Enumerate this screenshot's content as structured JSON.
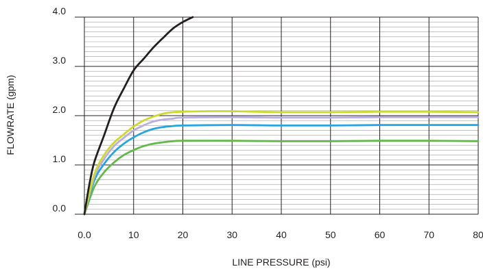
{
  "chart_data": {
    "type": "line",
    "xlabel": "LINE PRESSURE (psi)",
    "ylabel": "FLOWRATE (gpm)",
    "xlim": [
      0,
      80
    ],
    "ylim": [
      0,
      4
    ],
    "x_ticks": [
      "0.0",
      "10",
      "20",
      "30",
      "40",
      "50",
      "60",
      "70",
      "80"
    ],
    "y_ticks": [
      "0.0",
      "1.0",
      "2.0",
      "3.0",
      "4.0"
    ],
    "grid": true,
    "series": [
      {
        "color": "#231f20",
        "points": [
          [
            0,
            0
          ],
          [
            1,
            0.6
          ],
          [
            2,
            1.05
          ],
          [
            4,
            1.6
          ],
          [
            6,
            2.15
          ],
          [
            8,
            2.55
          ],
          [
            10,
            2.92
          ],
          [
            12,
            3.15
          ],
          [
            14,
            3.38
          ],
          [
            16,
            3.58
          ],
          [
            18,
            3.77
          ],
          [
            20,
            3.9
          ],
          [
            22,
            4.0
          ]
        ]
      },
      {
        "color": "#cfd82e",
        "points": [
          [
            0,
            0
          ],
          [
            2,
            0.8
          ],
          [
            4,
            1.2
          ],
          [
            6,
            1.45
          ],
          [
            8,
            1.62
          ],
          [
            10,
            1.78
          ],
          [
            12,
            1.9
          ],
          [
            14,
            1.98
          ],
          [
            16,
            2.04
          ],
          [
            18,
            2.07
          ],
          [
            20,
            2.08
          ],
          [
            25,
            2.09
          ],
          [
            30,
            2.09
          ],
          [
            40,
            2.07
          ],
          [
            50,
            2.07
          ],
          [
            60,
            2.08
          ],
          [
            70,
            2.08
          ],
          [
            80,
            2.07
          ]
        ]
      },
      {
        "color": "#b9aedf",
        "points": [
          [
            0,
            0
          ],
          [
            2,
            0.75
          ],
          [
            4,
            1.12
          ],
          [
            6,
            1.38
          ],
          [
            8,
            1.55
          ],
          [
            10,
            1.7
          ],
          [
            12,
            1.8
          ],
          [
            14,
            1.88
          ],
          [
            16,
            1.92
          ],
          [
            18,
            1.94
          ],
          [
            20,
            1.96
          ],
          [
            30,
            1.97
          ],
          [
            40,
            1.96
          ],
          [
            50,
            1.96
          ],
          [
            60,
            1.97
          ],
          [
            70,
            1.97
          ],
          [
            80,
            1.97
          ]
        ]
      },
      {
        "color": "#27a3dd",
        "points": [
          [
            0,
            0
          ],
          [
            2,
            0.68
          ],
          [
            4,
            1.02
          ],
          [
            6,
            1.26
          ],
          [
            8,
            1.43
          ],
          [
            10,
            1.56
          ],
          [
            12,
            1.66
          ],
          [
            14,
            1.73
          ],
          [
            16,
            1.77
          ],
          [
            18,
            1.79
          ],
          [
            20,
            1.8
          ],
          [
            30,
            1.81
          ],
          [
            40,
            1.8
          ],
          [
            50,
            1.8
          ],
          [
            60,
            1.81
          ],
          [
            70,
            1.81
          ],
          [
            80,
            1.81
          ]
        ]
      },
      {
        "color": "#62b849",
        "points": [
          [
            0,
            0
          ],
          [
            2,
            0.55
          ],
          [
            4,
            0.85
          ],
          [
            6,
            1.05
          ],
          [
            8,
            1.2
          ],
          [
            10,
            1.3
          ],
          [
            12,
            1.38
          ],
          [
            14,
            1.43
          ],
          [
            16,
            1.46
          ],
          [
            18,
            1.48
          ],
          [
            20,
            1.49
          ],
          [
            30,
            1.49
          ],
          [
            40,
            1.48
          ],
          [
            50,
            1.48
          ],
          [
            60,
            1.49
          ],
          [
            70,
            1.49
          ],
          [
            80,
            1.48
          ]
        ]
      }
    ]
  }
}
